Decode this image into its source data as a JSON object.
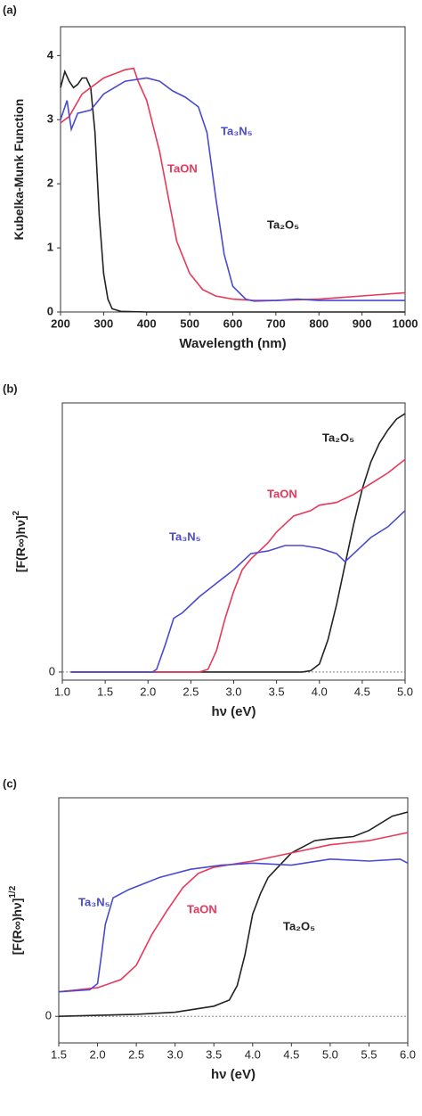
{
  "chart_data": [
    {
      "type": "line",
      "panel_label": "(a)",
      "xlabel": "Wavelength (nm)",
      "ylabel": "Kubelka-Munk Function",
      "xlim": [
        200,
        1000
      ],
      "xticks": [
        200,
        300,
        400,
        500,
        600,
        700,
        800,
        900,
        1000
      ],
      "ylim": [
        0,
        4.45
      ],
      "yticks": [
        0,
        1,
        2,
        3,
        4
      ],
      "series": [
        {
          "name": "Ta₂O₅",
          "color": "#222222",
          "x": [
            200,
            210,
            220,
            230,
            240,
            250,
            260,
            270,
            280,
            290,
            300,
            310,
            320,
            340,
            400,
            1000
          ],
          "values": [
            3.5,
            3.75,
            3.6,
            3.5,
            3.55,
            3.65,
            3.65,
            3.5,
            2.8,
            1.5,
            0.6,
            0.2,
            0.05,
            0.01,
            0,
            0
          ]
        },
        {
          "name": "TaON",
          "color": "#e8385a",
          "x": [
            200,
            220,
            250,
            300,
            350,
            370,
            380,
            400,
            430,
            450,
            470,
            500,
            530,
            560,
            600,
            650,
            700,
            800,
            900,
            1000
          ],
          "values": [
            2.95,
            3.05,
            3.4,
            3.65,
            3.78,
            3.8,
            3.6,
            3.3,
            2.5,
            1.8,
            1.1,
            0.6,
            0.35,
            0.25,
            0.2,
            0.18,
            0.18,
            0.2,
            0.25,
            0.3
          ]
        },
        {
          "name": "Ta₃N₅",
          "color": "#4a4ad0",
          "x": [
            200,
            215,
            225,
            240,
            270,
            300,
            350,
            400,
            430,
            460,
            490,
            520,
            540,
            560,
            580,
            600,
            630,
            650,
            700,
            750,
            800,
            1000
          ],
          "values": [
            3.0,
            3.3,
            2.85,
            3.1,
            3.15,
            3.4,
            3.6,
            3.65,
            3.6,
            3.45,
            3.35,
            3.2,
            2.8,
            1.8,
            0.9,
            0.4,
            0.2,
            0.17,
            0.18,
            0.2,
            0.18,
            0.18
          ]
        }
      ]
    },
    {
      "type": "line",
      "panel_label": "(b)",
      "xlabel": "hν (eV)",
      "ylabel": "[F(R∞)hν]",
      "ylabel_sup": "2",
      "xlim": [
        1,
        5
      ],
      "xticks": [
        {
          "value": 1,
          "label": "1.0"
        },
        1.5,
        {
          "value": 2,
          "label": "2.0"
        },
        2.5,
        {
          "value": 3,
          "label": "3.0"
        },
        3.5,
        {
          "value": 4,
          "label": "4.0"
        },
        4.5,
        {
          "value": 5,
          "label": "5.0"
        }
      ],
      "ylim": [
        -0.03,
        1
      ],
      "yticks": [
        0
      ],
      "series": [
        {
          "name": "Ta₂O₅",
          "color": "#222222",
          "x": [
            1.1,
            3.8,
            3.9,
            4.0,
            4.1,
            4.2,
            4.3,
            4.4,
            4.5,
            4.6,
            4.7,
            4.8,
            4.9,
            5.0
          ],
          "values": [
            0,
            0,
            0.005,
            0.03,
            0.12,
            0.25,
            0.4,
            0.55,
            0.68,
            0.78,
            0.85,
            0.9,
            0.94,
            0.96
          ]
        },
        {
          "name": "TaON",
          "color": "#e8385a",
          "x": [
            1.1,
            2.6,
            2.7,
            2.8,
            2.9,
            3.0,
            3.1,
            3.2,
            3.3,
            3.4,
            3.5,
            3.7,
            3.9,
            4.0,
            4.2,
            4.4,
            4.6,
            4.8,
            5.0
          ],
          "values": [
            0,
            0,
            0.01,
            0.08,
            0.2,
            0.3,
            0.38,
            0.42,
            0.45,
            0.48,
            0.52,
            0.58,
            0.6,
            0.62,
            0.63,
            0.66,
            0.7,
            0.74,
            0.79
          ]
        },
        {
          "name": "Ta₃N₅",
          "color": "#4a4ad0",
          "x": [
            1.1,
            2.05,
            2.1,
            2.2,
            2.3,
            2.4,
            2.6,
            2.8,
            3.0,
            3.2,
            3.4,
            3.6,
            3.8,
            4.0,
            4.2,
            4.3,
            4.4,
            4.6,
            4.8,
            5.0
          ],
          "values": [
            0,
            0,
            0.01,
            0.1,
            0.2,
            0.22,
            0.28,
            0.33,
            0.38,
            0.44,
            0.45,
            0.47,
            0.47,
            0.46,
            0.44,
            0.41,
            0.44,
            0.5,
            0.54,
            0.6
          ]
        }
      ]
    },
    {
      "type": "line",
      "panel_label": "(c)",
      "xlabel": "hν (eV)",
      "ylabel": "[F(R∞)hν]",
      "ylabel_sup": "1/2",
      "xlim": [
        1.5,
        6
      ],
      "xticks": [
        1.5,
        {
          "value": 2,
          "label": "2.0"
        },
        2.5,
        {
          "value": 3,
          "label": "3.0"
        },
        3.5,
        {
          "value": 4,
          "label": "4.0"
        },
        4.5,
        {
          "value": 5,
          "label": "5.0"
        },
        5.5,
        {
          "value": 6,
          "label": "6.0"
        }
      ],
      "ylim": [
        -0.13,
        1.07
      ],
      "yticks": [
        0
      ],
      "series": [
        {
          "name": "Ta₂O₅",
          "color": "#222222",
          "x": [
            1.5,
            2.5,
            3.0,
            3.5,
            3.7,
            3.8,
            3.9,
            4.0,
            4.1,
            4.2,
            4.5,
            4.8,
            5.0,
            5.3,
            5.5,
            5.8,
            6.0
          ],
          "values": [
            0,
            0.01,
            0.02,
            0.05,
            0.08,
            0.15,
            0.3,
            0.5,
            0.6,
            0.68,
            0.8,
            0.86,
            0.87,
            0.88,
            0.91,
            0.98,
            1.0
          ]
        },
        {
          "name": "TaON",
          "color": "#e8385a",
          "x": [
            1.5,
            2.0,
            2.3,
            2.5,
            2.7,
            2.9,
            3.1,
            3.3,
            3.5,
            4.0,
            4.5,
            5.0,
            5.5,
            6.0
          ],
          "values": [
            0.12,
            0.14,
            0.18,
            0.25,
            0.4,
            0.52,
            0.63,
            0.7,
            0.73,
            0.76,
            0.8,
            0.84,
            0.86,
            0.9
          ]
        },
        {
          "name": "Ta₃N₅",
          "color": "#4a4ad0",
          "x": [
            1.5,
            1.9,
            2.0,
            2.05,
            2.1,
            2.2,
            2.4,
            2.8,
            3.2,
            3.6,
            4.0,
            4.5,
            5.0,
            5.5,
            5.9,
            6.0
          ],
          "values": [
            0.12,
            0.13,
            0.16,
            0.3,
            0.45,
            0.58,
            0.62,
            0.68,
            0.72,
            0.74,
            0.75,
            0.74,
            0.77,
            0.76,
            0.77,
            0.75
          ]
        }
      ]
    }
  ]
}
